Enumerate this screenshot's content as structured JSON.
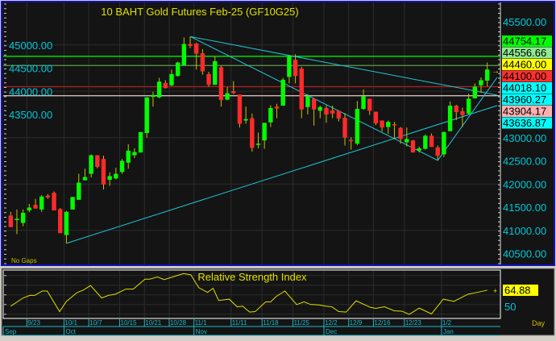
{
  "chart_data": [
    {
      "type": "candlestick",
      "title": "10  BAHT  Gold Futures Feb-25  (GF10G25)",
      "footnote": "No Gaps",
      "ylim": [
        40300,
        45800
      ],
      "y_ticks": [
        45500,
        45000,
        44500,
        44000,
        43500,
        43000,
        42500,
        42000,
        41500,
        41000,
        40500
      ],
      "y_tick_labels": [
        "45500.00",
        "45000.00",
        "44500.00",
        "44000.00",
        "43500.00",
        "43000.00",
        "42500.00",
        "42000.00",
        "41500.00",
        "41000.00",
        "40500.00"
      ],
      "grid": true,
      "colors": {
        "background": "#141414",
        "up": "#00ff00",
        "down": "#ff2a2a",
        "wick": "#c8c000",
        "axis_text": "#00c8d8",
        "title": "#e0e000",
        "trendline": "#20c8d8",
        "border": "#1010c0"
      },
      "ohlc": [
        [
          41320,
          41400,
          41070,
          41070
        ],
        [
          41230,
          41450,
          40920,
          41250
        ],
        [
          41160,
          41450,
          41090,
          41380
        ],
        [
          41430,
          41570,
          41390,
          41490
        ],
        [
          41550,
          41680,
          41470,
          41470
        ],
        [
          41450,
          41760,
          41400,
          41730
        ],
        [
          41750,
          41780,
          41680,
          41710
        ],
        [
          41810,
          41840,
          41430,
          41430
        ],
        [
          41460,
          41480,
          40940,
          40940
        ],
        [
          40900,
          41420,
          40720,
          41400
        ],
        [
          41450,
          41720,
          41450,
          41720
        ],
        [
          41660,
          42220,
          41660,
          42030
        ],
        [
          42080,
          42330,
          42080,
          42150
        ],
        [
          42220,
          42640,
          42140,
          42620
        ],
        [
          42620,
          42620,
          42340,
          42370
        ],
        [
          42540,
          42610,
          41880,
          41990
        ],
        [
          42090,
          42250,
          41960,
          42170
        ],
        [
          42120,
          42350,
          42100,
          42220
        ],
        [
          42260,
          42540,
          42220,
          42500
        ],
        [
          42460,
          42860,
          42330,
          42720
        ],
        [
          42620,
          42770,
          42560,
          42690
        ],
        [
          42680,
          43120,
          42680,
          43120
        ],
        [
          43100,
          43870,
          43000,
          43870
        ],
        [
          43880,
          43990,
          43670,
          43920
        ],
        [
          43870,
          44290,
          43850,
          44210
        ],
        [
          44180,
          44240,
          44060,
          44070
        ],
        [
          44130,
          44470,
          44110,
          44370
        ],
        [
          44330,
          44640,
          44320,
          44620
        ],
        [
          44560,
          45160,
          44560,
          45020
        ],
        [
          45020,
          45180,
          44930,
          44980
        ],
        [
          45030,
          45050,
          44470,
          44810
        ],
        [
          44820,
          44910,
          44360,
          44430
        ],
        [
          44370,
          44420,
          44100,
          44140
        ],
        [
          44140,
          44760,
          44140,
          44650
        ],
        [
          44520,
          44550,
          43670,
          43810
        ],
        [
          43820,
          44090,
          43810,
          43960
        ],
        [
          44000,
          44220,
          43940,
          43960
        ],
        [
          43930,
          43930,
          43220,
          43300
        ],
        [
          43370,
          43670,
          43300,
          43400
        ],
        [
          43420,
          43520,
          42700,
          42780
        ],
        [
          42860,
          43110,
          42770,
          42870
        ],
        [
          42940,
          43320,
          42760,
          43320
        ],
        [
          43330,
          43700,
          43230,
          43640
        ],
        [
          43670,
          43730,
          43420,
          43630
        ],
        [
          43690,
          44290,
          43690,
          44250
        ],
        [
          44310,
          44780,
          44170,
          44750
        ],
        [
          44680,
          44800,
          44170,
          44330
        ],
        [
          44490,
          44530,
          43420,
          43610
        ],
        [
          43660,
          43940,
          43500,
          43890
        ],
        [
          43840,
          43840,
          43260,
          43610
        ],
        [
          43580,
          43690,
          43420,
          43660
        ],
        [
          43640,
          43700,
          43320,
          43500
        ],
        [
          43590,
          43690,
          43420,
          43520
        ],
        [
          43580,
          43580,
          43350,
          43410
        ],
        [
          43430,
          43530,
          42830,
          43000
        ],
        [
          42950,
          43010,
          42740,
          42930
        ],
        [
          42870,
          43790,
          42840,
          43620
        ],
        [
          43620,
          44040,
          43600,
          43890
        ],
        [
          43840,
          43840,
          43490,
          43580
        ],
        [
          43560,
          43560,
          43270,
          43310
        ],
        [
          43370,
          43370,
          43130,
          43220
        ],
        [
          43230,
          43370,
          43080,
          43340
        ],
        [
          43290,
          43340,
          42970,
          43270
        ],
        [
          43210,
          43230,
          42870,
          42970
        ],
        [
          42900,
          43220,
          42810,
          42970
        ],
        [
          42940,
          42950,
          42680,
          42680
        ],
        [
          42720,
          42810,
          42680,
          42770
        ],
        [
          42760,
          43070,
          42740,
          43040
        ],
        [
          43040,
          43090,
          42800,
          42800
        ],
        [
          42790,
          42830,
          42520,
          42610
        ],
        [
          42640,
          43130,
          42580,
          43120
        ],
        [
          43140,
          43780,
          43140,
          43690
        ],
        [
          43690,
          43710,
          43380,
          43550
        ],
        [
          43570,
          43650,
          43230,
          43490
        ],
        [
          43520,
          43950,
          43500,
          43840
        ],
        [
          43850,
          44170,
          43840,
          44100
        ],
        [
          44130,
          44300,
          43970,
          44240
        ],
        [
          44230,
          44620,
          44110,
          44470
        ]
      ],
      "horizontal_lines": [
        {
          "value": 44754.17,
          "label": "44754.17",
          "color": "#00ff00",
          "label_bg": "#00ff00"
        },
        {
          "value": 44556.66,
          "label": "44556.66",
          "color": "#5f9a48",
          "label_bg": "#90e890"
        },
        {
          "value": 44100.0,
          "label": "44100.00",
          "color": "#b02020",
          "label_bg": "#ff3030"
        },
        {
          "value": 43904.17,
          "label": "43904.17",
          "color": "#f0c8c8",
          "label_bg": "#ffb0b0"
        }
      ],
      "price_labels": [
        {
          "value": 44460.0,
          "label": "44460.00",
          "label_bg": "#ffff00"
        },
        {
          "value": 44018.1,
          "label": "44018.10",
          "label_bg": "#00ffff"
        },
        {
          "value": 43960.27,
          "label": "43960.27",
          "label_bg": "#00ffff"
        },
        {
          "value": 43636.87,
          "label": "43636.87",
          "label_bg": "#00ffff"
        }
      ],
      "trendlines": [
        [
          [
            30,
            45181
          ],
          [
            79.6,
            43917
          ]
        ],
        [
          [
            30,
            45181
          ],
          [
            70,
            42509
          ],
          [
            79.6,
            44300
          ]
        ],
        [
          [
            10,
            40720
          ],
          [
            79.6,
            43691
          ]
        ]
      ]
    },
    {
      "type": "line",
      "title": "Relative Strength Index",
      "ylim": [
        35,
        86
      ],
      "y_ticks": [
        80,
        70,
        60,
        50,
        40
      ],
      "y_tick_labels": [
        "50"
      ],
      "last_value": "64.88",
      "colors": {
        "line": "#e0e000",
        "label_bg": "#ffff00"
      },
      "points": [
        [
          1.0,
          48.3
        ],
        [
          3.0,
          56.8
        ],
        [
          4.1,
          59.5
        ],
        [
          4.9,
          59.5
        ],
        [
          6.1,
          64.0
        ],
        [
          6.9,
          64.0
        ],
        [
          8.9,
          42.7
        ],
        [
          10.0,
          53.3
        ],
        [
          11.7,
          62.3
        ],
        [
          12.8,
          65.2
        ],
        [
          13.9,
          69.7
        ],
        [
          15.7,
          56.8
        ],
        [
          16.8,
          59.5
        ],
        [
          17.9,
          60.7
        ],
        [
          19.6,
          66.0
        ],
        [
          20.8,
          66.0
        ],
        [
          22.7,
          76.3
        ],
        [
          23.5,
          76.3
        ],
        [
          24.7,
          78.6
        ],
        [
          25.8,
          75.8
        ],
        [
          27.5,
          79.2
        ],
        [
          28.9,
          82.0
        ],
        [
          30.1,
          80.8
        ],
        [
          31.4,
          67.4
        ],
        [
          32.8,
          62.6
        ],
        [
          33.7,
          66.8
        ],
        [
          34.6,
          54.2
        ],
        [
          36.3,
          55.6
        ],
        [
          37.6,
          47.7
        ],
        [
          38.5,
          48.3
        ],
        [
          39.6,
          42.2
        ],
        [
          40.5,
          42.7
        ],
        [
          42.2,
          52.8
        ],
        [
          43.0,
          52.8
        ],
        [
          43.9,
          58.4
        ],
        [
          45.3,
          64.0
        ],
        [
          47.2,
          50.0
        ],
        [
          48.4,
          52.8
        ],
        [
          49.5,
          50.0
        ],
        [
          50.7,
          49.7
        ],
        [
          52.0,
          48.3
        ],
        [
          52.9,
          47.7
        ],
        [
          54.0,
          42.7
        ],
        [
          55.2,
          42.2
        ],
        [
          56.8,
          53.9
        ],
        [
          59.1,
          47.2
        ],
        [
          60.0,
          46.1
        ],
        [
          61.4,
          47.7
        ],
        [
          63.0,
          43.5
        ],
        [
          64.2,
          43.2
        ],
        [
          65.4,
          39.9
        ],
        [
          67.0,
          46.3
        ],
        [
          69.0,
          40.4
        ],
        [
          70.9,
          55.6
        ],
        [
          72.6,
          53.3
        ],
        [
          74.9,
          60.7
        ],
        [
          76.6,
          62.9
        ],
        [
          78.0,
          64.88
        ]
      ]
    }
  ],
  "x_axis": {
    "day_ticks": [
      {
        "bar": 4,
        "label": "9/23"
      },
      {
        "bar": 10,
        "label": "10/1"
      },
      {
        "bar": 14,
        "label": "10/7"
      },
      {
        "bar": 19,
        "label": "10/15"
      },
      {
        "bar": 23,
        "label": "10/21"
      },
      {
        "bar": 27,
        "label": "10/28"
      },
      {
        "bar": 31,
        "label": "11/1"
      },
      {
        "bar": 37,
        "label": "11/11"
      },
      {
        "bar": 42,
        "label": "11/18"
      },
      {
        "bar": 47,
        "label": "11/25"
      },
      {
        "bar": 52,
        "label": "12/2"
      },
      {
        "bar": 56,
        "label": "12/9"
      },
      {
        "bar": 60,
        "label": "12/16"
      },
      {
        "bar": 65,
        "label": "12/23"
      },
      {
        "bar": 71,
        "label": "1/2"
      }
    ],
    "month_ticks": [
      {
        "bar": 0,
        "label": "Sep"
      },
      {
        "bar": 10,
        "label": "Oct"
      },
      {
        "bar": 31,
        "label": "Nov"
      },
      {
        "bar": 52,
        "label": "Dec"
      },
      {
        "bar": 71,
        "label": "Jan"
      }
    ],
    "period_label": "Day"
  }
}
